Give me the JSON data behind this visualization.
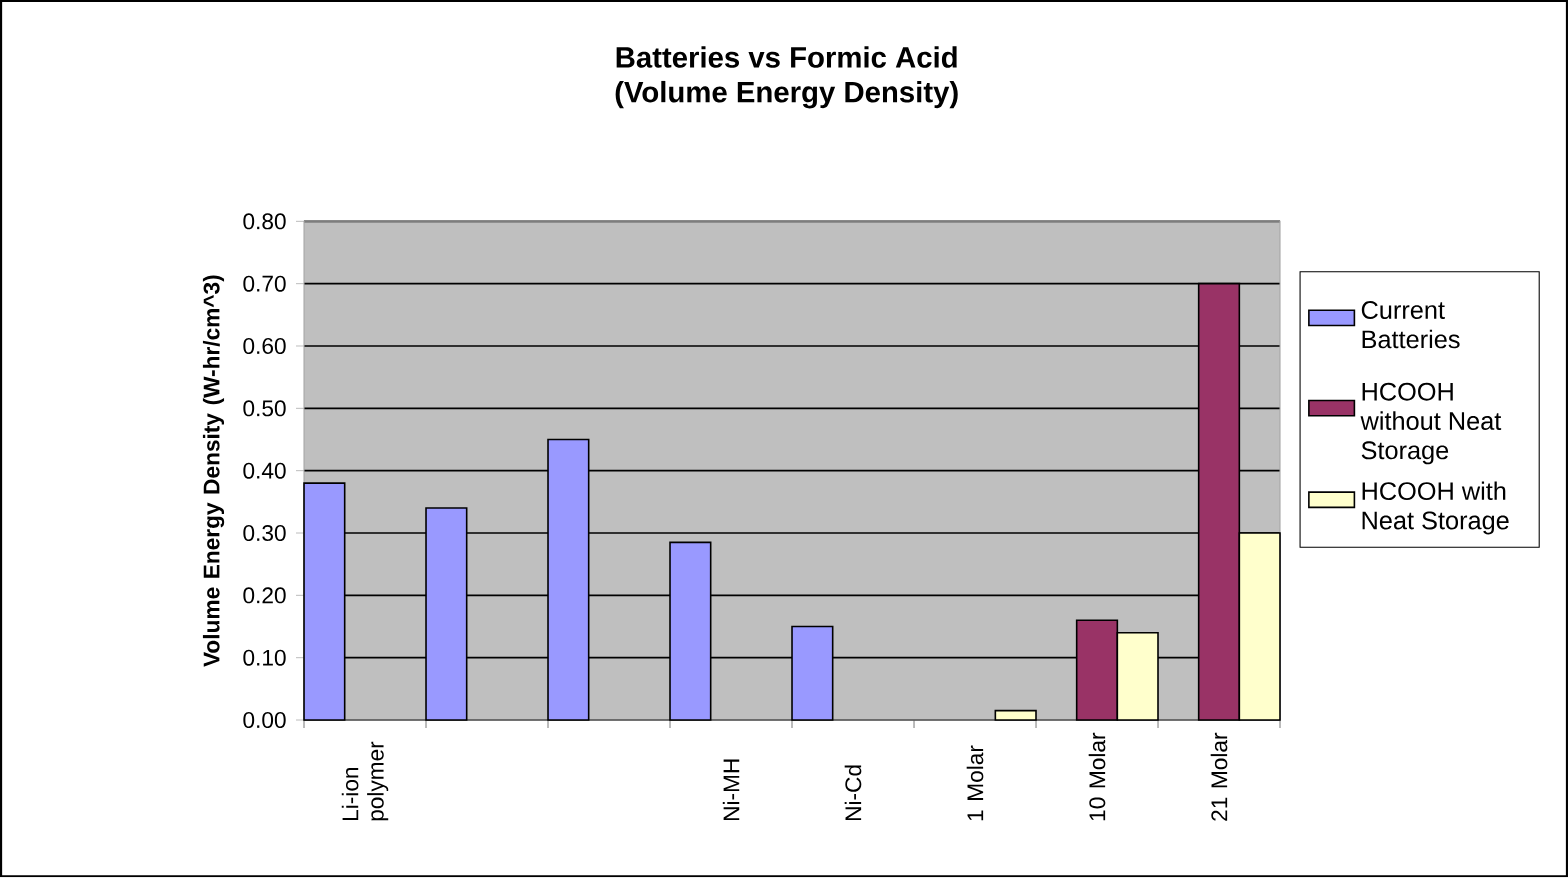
{
  "chart_data": {
    "type": "bar",
    "title": "Batteries vs Formic Acid",
    "subtitle": "(Volume Energy Density)",
    "ylabel": "Volume Energy Density (W-hr/cm^3)",
    "categories": [
      "Li-ion polymer",
      null,
      null,
      "Ni-MH",
      "Ni-Cd",
      "1 Molar",
      "10 Molar",
      "21 Molar"
    ],
    "series": [
      {
        "name": "Current Batteries",
        "color": "#9999ff",
        "values": [
          0.38,
          0.34,
          0.45,
          0.285,
          0.15,
          null,
          null,
          null
        ]
      },
      {
        "name": "HCOOH without Neat Storage",
        "color": "#993366",
        "values": [
          null,
          null,
          null,
          null,
          null,
          null,
          0.16,
          0.7
        ]
      },
      {
        "name": "HCOOH with Neat Storage",
        "color": "#ffffcc",
        "values": [
          null,
          null,
          null,
          null,
          null,
          0.015,
          0.14,
          0.3
        ]
      }
    ],
    "ylim": [
      0,
      0.8
    ],
    "yticks": [
      {
        "value": 0,
        "label": "0.00"
      },
      {
        "value": 0.1,
        "label": "0.10"
      },
      {
        "value": 0.2,
        "label": "0.20"
      },
      {
        "value": 0.3,
        "label": "0.30"
      },
      {
        "value": 0.4,
        "label": "0.40"
      },
      {
        "value": 0.5,
        "label": "0.50"
      },
      {
        "value": 0.6,
        "label": "0.60"
      },
      {
        "value": 0.7,
        "label": "0.70"
      },
      {
        "value": 0.8,
        "label": "0.80"
      }
    ],
    "grid": "y",
    "legend": "right"
  }
}
